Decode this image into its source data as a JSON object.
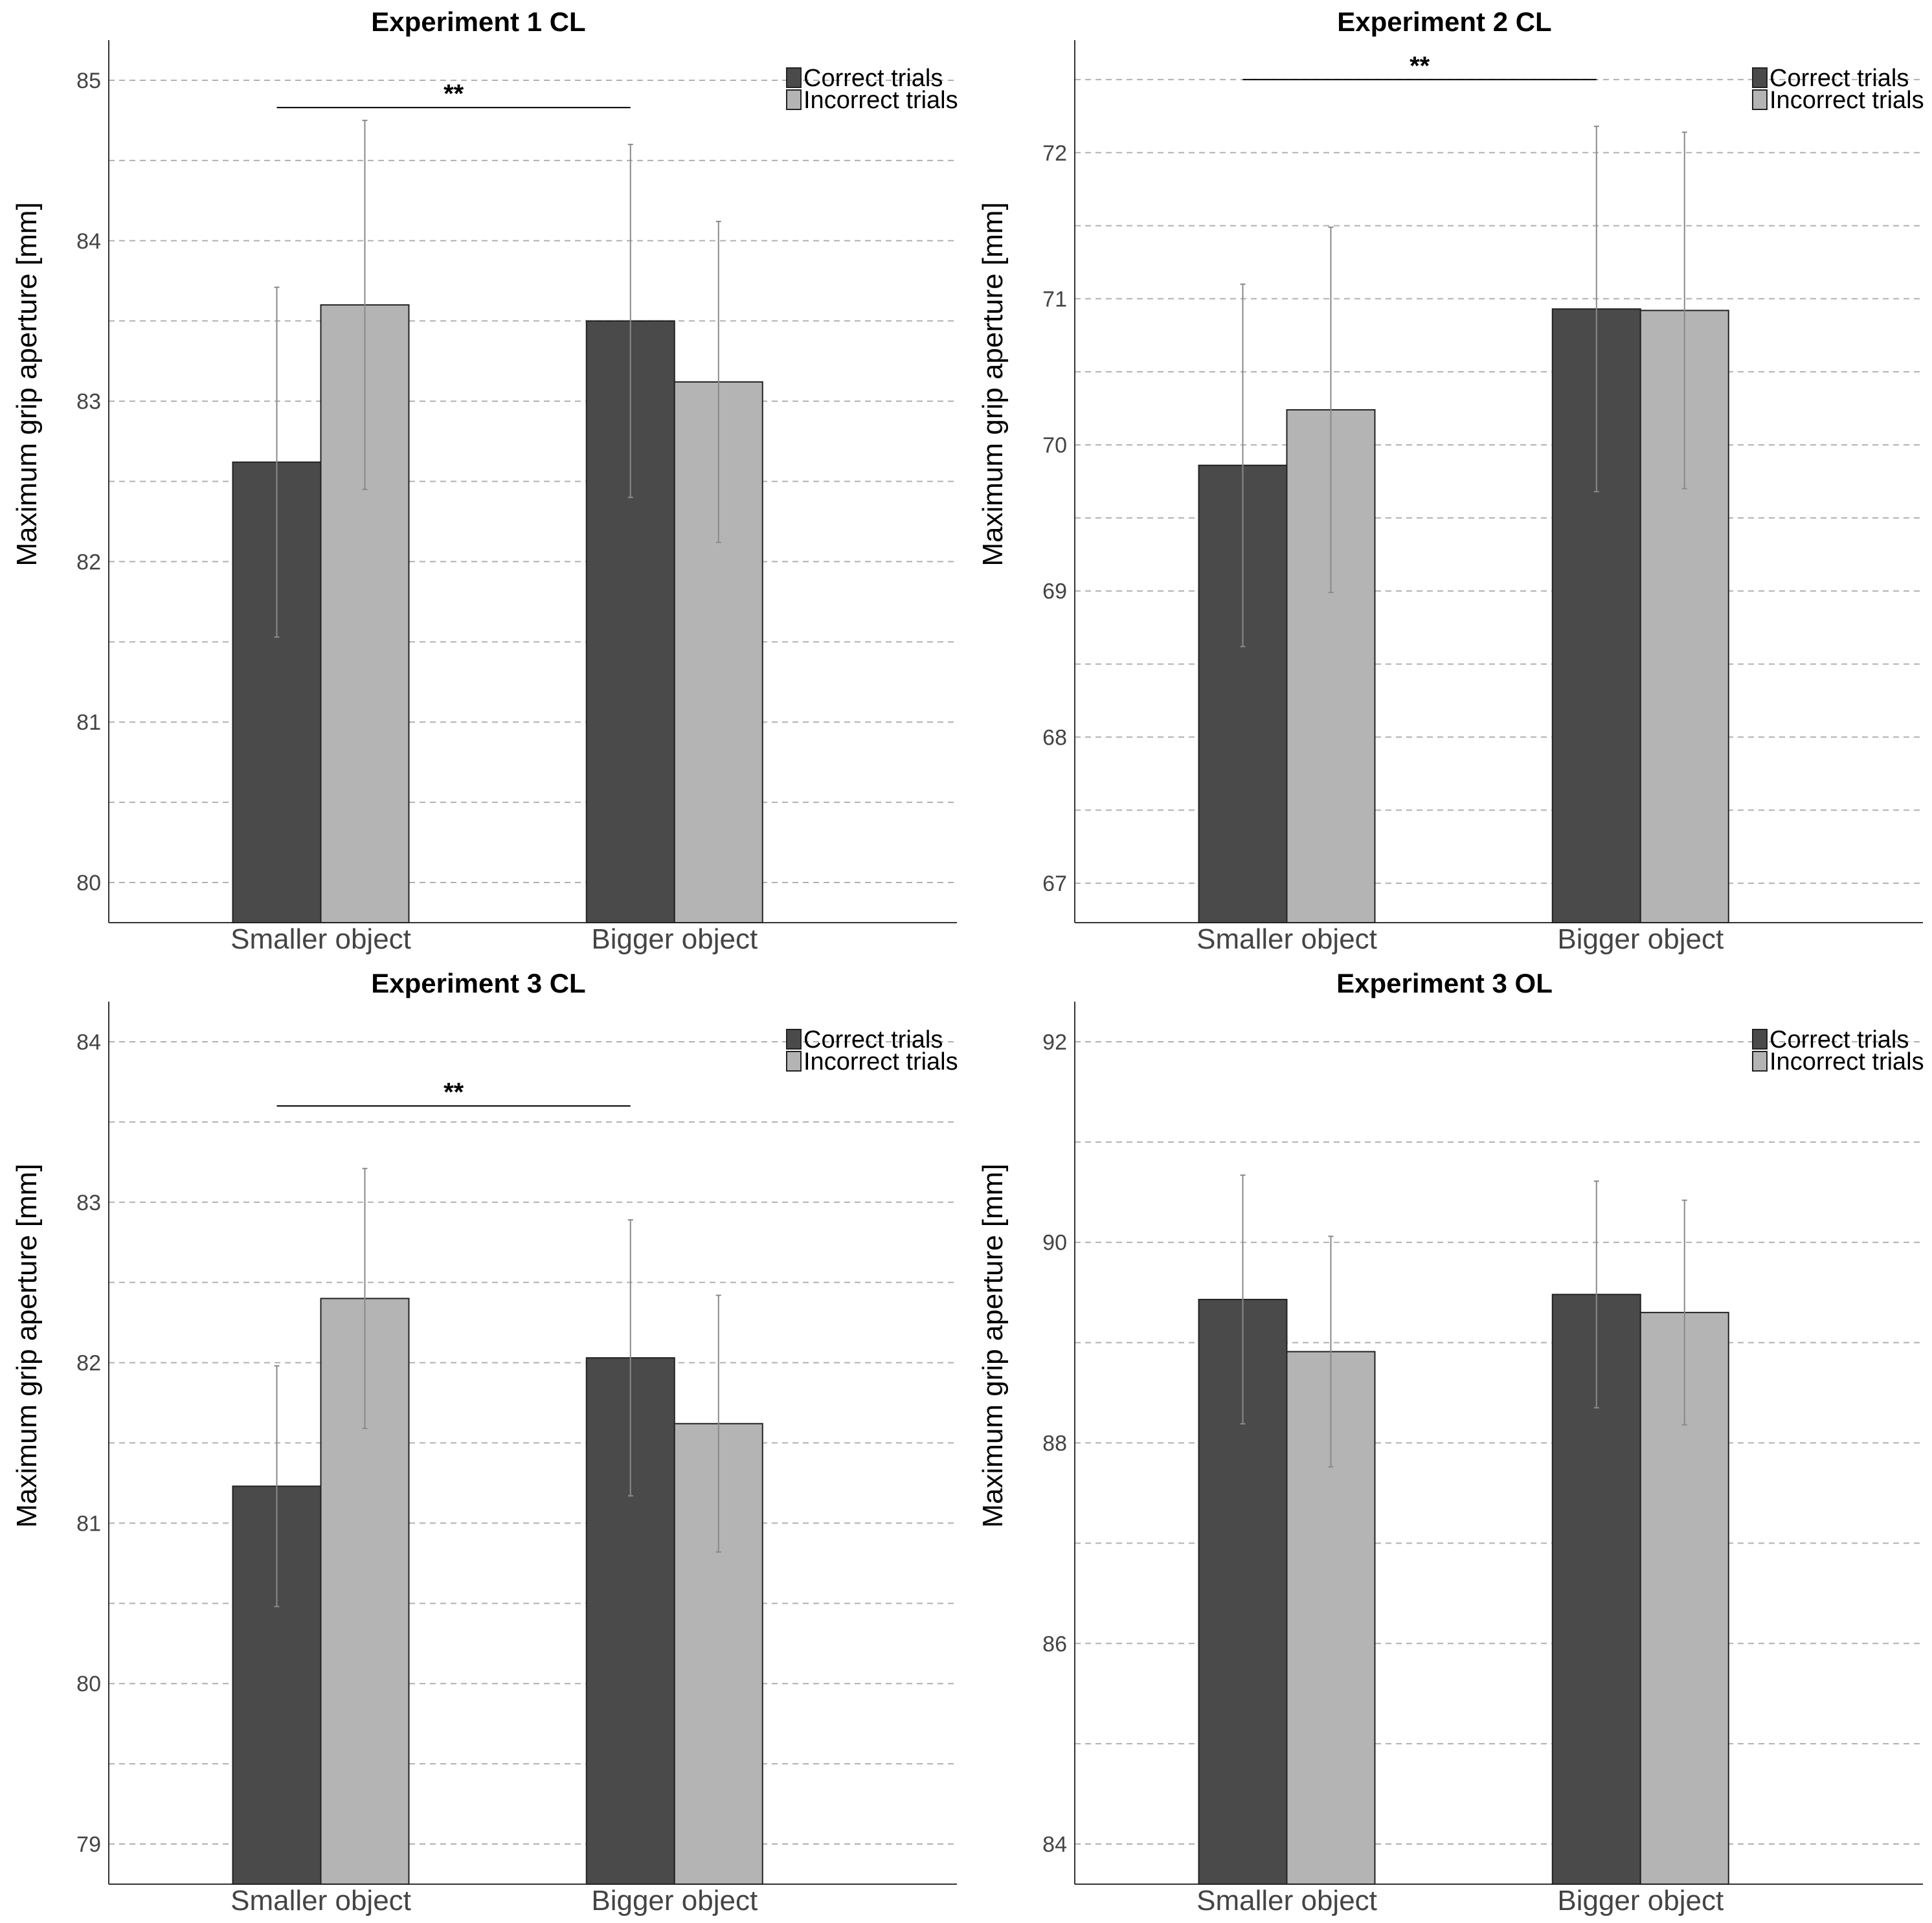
{
  "chart_data": [
    {
      "type": "bar",
      "title": "Experiment 1 CL",
      "xlabel": "",
      "ylabel": "Maximum grip aperture [mm]",
      "categories": [
        "Smaller object",
        "Bigger object"
      ],
      "yticks": [
        80,
        81,
        82,
        83,
        84,
        85
      ],
      "ylim": [
        79.75,
        85.25
      ],
      "series": [
        {
          "name": "Correct trials",
          "color": "#4a4a4a",
          "values": [
            82.62,
            83.5
          ],
          "errors": [
            1.09,
            1.1
          ]
        },
        {
          "name": "Incorrect trials",
          "color": "#b4b4b4",
          "values": [
            83.6,
            83.12
          ],
          "errors": [
            1.15,
            1.0
          ]
        }
      ],
      "significance": {
        "label": "**",
        "from": "Smaller object",
        "to": "Bigger object",
        "y": 84.83
      },
      "grid": true,
      "legend": "top-right"
    },
    {
      "type": "bar",
      "title": "Experiment 2 CL",
      "xlabel": "",
      "ylabel": "Maximum grip aperture [mm]",
      "categories": [
        "Smaller object",
        "Bigger object"
      ],
      "yticks": [
        67,
        68,
        69,
        70,
        71,
        72
      ],
      "ylim": [
        66.73,
        72.77
      ],
      "series": [
        {
          "name": "Correct trials",
          "color": "#4a4a4a",
          "values": [
            69.86,
            70.93
          ],
          "errors": [
            1.24,
            1.25
          ]
        },
        {
          "name": "Incorrect trials",
          "color": "#b4b4b4",
          "values": [
            70.24,
            70.92
          ],
          "errors": [
            1.25,
            1.22
          ]
        }
      ],
      "significance": {
        "label": "**",
        "from": "Smaller object",
        "to": "Bigger object",
        "y": 72.5
      },
      "grid": true,
      "legend": "top-right"
    },
    {
      "type": "bar",
      "title": "Experiment 3 CL",
      "xlabel": "",
      "ylabel": "Maximum grip aperture [mm]",
      "categories": [
        "Smaller object",
        "Bigger object"
      ],
      "yticks": [
        79,
        80,
        81,
        82,
        83,
        84
      ],
      "ylim": [
        78.75,
        84.25
      ],
      "series": [
        {
          "name": "Correct trials",
          "color": "#4a4a4a",
          "values": [
            81.23,
            82.03
          ],
          "errors": [
            0.75,
            0.86
          ]
        },
        {
          "name": "Incorrect trials",
          "color": "#b4b4b4",
          "values": [
            82.4,
            81.62
          ],
          "errors": [
            0.81,
            0.8
          ]
        }
      ],
      "significance": {
        "label": "**",
        "from": "Smaller object",
        "to": "Bigger object",
        "y": 83.6
      },
      "grid": true,
      "legend": "top-right"
    },
    {
      "type": "bar",
      "title": "Experiment 3 OL",
      "xlabel": "",
      "ylabel": "Maximum grip aperture [mm]",
      "categories": [
        "Smaller object",
        "Bigger object"
      ],
      "yticks": [
        84,
        86,
        88,
        90,
        92
      ],
      "ylim": [
        83.6,
        92.4
      ],
      "series": [
        {
          "name": "Correct trials",
          "color": "#4a4a4a",
          "values": [
            89.43,
            89.48
          ],
          "errors": [
            1.24,
            1.13
          ]
        },
        {
          "name": "Incorrect trials",
          "color": "#b4b4b4",
          "values": [
            88.91,
            89.3
          ],
          "errors": [
            1.15,
            1.12
          ]
        }
      ],
      "significance": null,
      "grid": true,
      "legend": "top-right"
    }
  ]
}
